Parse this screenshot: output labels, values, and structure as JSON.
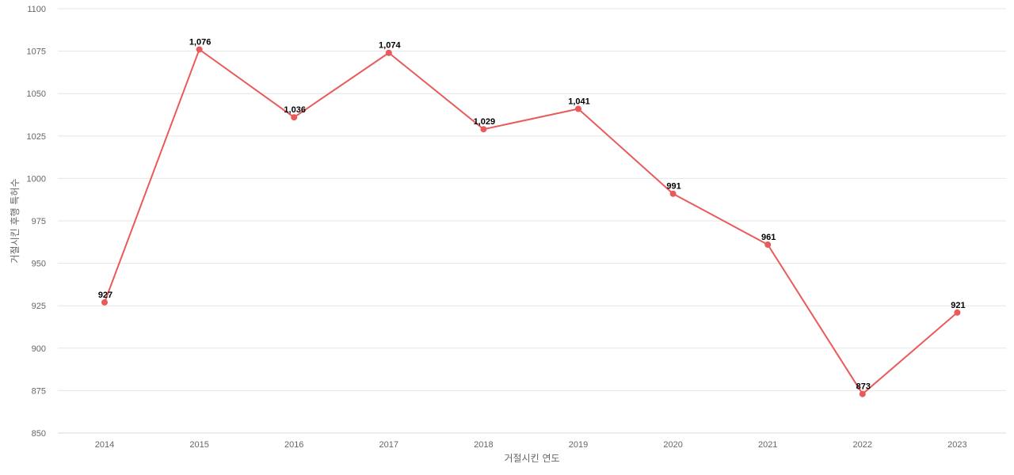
{
  "chart_data": {
    "type": "line",
    "title": "",
    "xlabel": "거절시킨 연도",
    "ylabel": "거절시킨 후행 특허수",
    "categories": [
      "2014",
      "2015",
      "2016",
      "2017",
      "2018",
      "2019",
      "2020",
      "2021",
      "2022",
      "2023"
    ],
    "series": [
      {
        "values": [
          927,
          1076,
          1036,
          1074,
          1029,
          1041,
          991,
          961,
          873,
          921
        ],
        "labels": [
          "927",
          "1,076",
          "1,036",
          "1,074",
          "1,029",
          "1,041",
          "991",
          "961",
          "873",
          "921"
        ],
        "color": "#ea5a5a"
      }
    ],
    "ylim": [
      850,
      1100
    ],
    "yticks": [
      "850",
      "875",
      "900",
      "925",
      "950",
      "975",
      "1000",
      "1025",
      "1050",
      "1075",
      "1100"
    ],
    "grid": true,
    "legend": "none"
  }
}
